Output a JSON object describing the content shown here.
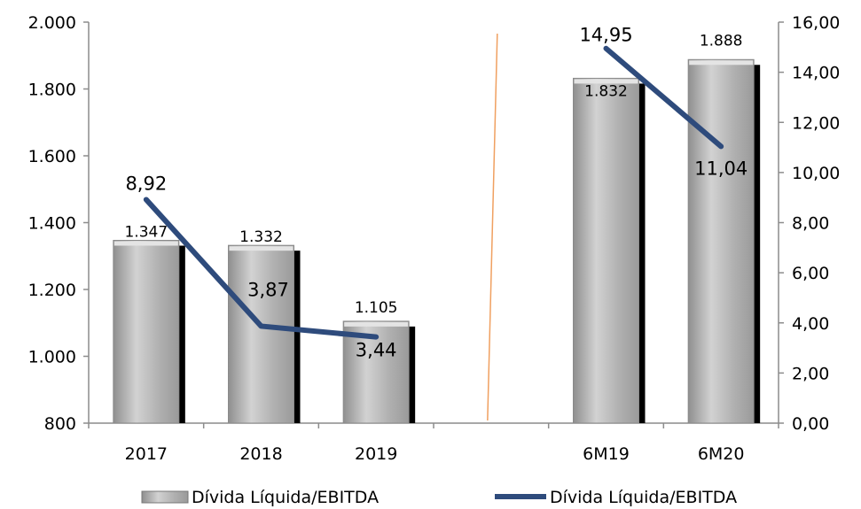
{
  "chart_data": {
    "type": "bar",
    "categories": [
      "2017",
      "2018",
      "2019",
      "",
      "6M19",
      "6M20"
    ],
    "series": [
      {
        "name": "Dívida Líquida/EBITDA",
        "type": "bar",
        "axis": "left",
        "values": [
          1347,
          1332,
          1105,
          null,
          1832,
          1888
        ],
        "labels": [
          "1.347",
          "1.332",
          "1.105",
          "",
          "1.832",
          "1.888"
        ]
      },
      {
        "name": "Dívida Líquida/EBITDA",
        "type": "line",
        "axis": "right",
        "values": [
          8.92,
          3.87,
          3.44,
          null,
          14.95,
          11.04
        ],
        "labels": [
          "8,92",
          "3,87",
          "3,44",
          "",
          "14,95",
          "11,04"
        ]
      }
    ],
    "y_left": {
      "ylim": [
        800,
        2000
      ],
      "ticks": [
        800,
        1000,
        1200,
        1400,
        1600,
        1800,
        2000
      ],
      "tick_labels": [
        "800",
        "1.000",
        "1.200",
        "1.400",
        "1.600",
        "1.800",
        "2.000"
      ]
    },
    "y_right": {
      "ylim": [
        0,
        16
      ],
      "ticks": [
        0,
        2,
        4,
        6,
        8,
        10,
        12,
        14,
        16
      ],
      "tick_labels": [
        "0,00",
        "2,00",
        "4,00",
        "6,00",
        "8,00",
        "10,00",
        "12,00",
        "14,00",
        "16,00"
      ]
    },
    "legend": {
      "position": "bottom",
      "entries": [
        "Dívida Líquida/EBITDA",
        "Dívida Líquida/EBITDA"
      ]
    },
    "grid": false,
    "colors": {
      "bar_fill": "#b5b5b5",
      "bar_shadow": "#000000",
      "line": "#2e4b7c",
      "separator": "#f0a060",
      "axis": "#8c8c8c"
    }
  }
}
